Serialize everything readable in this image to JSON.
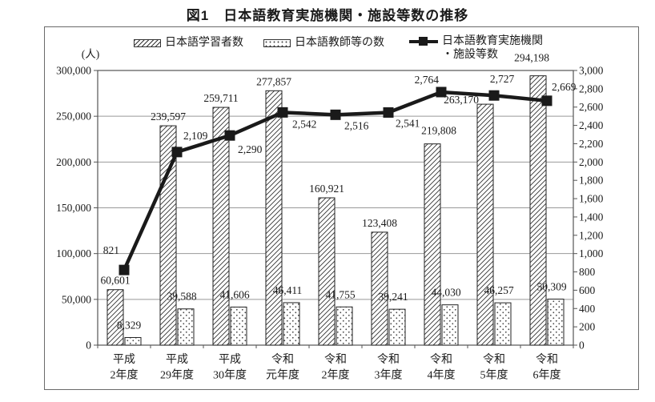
{
  "title": "図1　日本語教育実施機関・施設等数の推移",
  "legend": [
    {
      "label": "日本語学習者数",
      "swatch": "hatched-bar"
    },
    {
      "label": "日本語教師等の数",
      "swatch": "dotted-bar"
    },
    {
      "label": "日本語教育実施機関\n・施設等数",
      "swatch": "line-marker"
    }
  ],
  "colors": {
    "line": "#1a1a1a",
    "bar_outline": "#222222",
    "hatch": "#333333",
    "grid": "#999999",
    "frame": "#555555",
    "text": "#1a1a1a"
  },
  "chart_data": {
    "type": "bar-line-combo",
    "categories": [
      [
        "平成",
        "2年度"
      ],
      [
        "平成",
        "29年度"
      ],
      [
        "平成",
        "30年度"
      ],
      [
        "令和",
        "元年度"
      ],
      [
        "令和",
        "2年度"
      ],
      [
        "令和",
        "3年度"
      ],
      [
        "令和",
        "4年度"
      ],
      [
        "令和",
        "5年度"
      ],
      [
        "令和",
        "6年度"
      ]
    ],
    "series": [
      {
        "name": "日本語学習者数",
        "type": "bar",
        "pattern": "diagonal-hatch",
        "axis": "left",
        "values": [
          60601,
          239597,
          259711,
          277857,
          160921,
          123408,
          219808,
          263170,
          294198
        ]
      },
      {
        "name": "日本語教師等の数",
        "type": "bar",
        "pattern": "dots",
        "axis": "left",
        "values": [
          8329,
          39588,
          41606,
          46411,
          41755,
          39241,
          44030,
          46257,
          50309
        ]
      },
      {
        "name": "日本語教育実施機関・施設等数",
        "type": "line",
        "axis": "right",
        "values": [
          821,
          2109,
          2290,
          2542,
          2516,
          2541,
          2764,
          2727,
          2669
        ]
      }
    ],
    "left_axis": {
      "unit": "(人)",
      "min": 0,
      "max": 300000,
      "step": 50000
    },
    "right_axis": {
      "min": 0,
      "max": 3000,
      "step": 200
    },
    "grid": true,
    "legend_position": "top",
    "data_labels": true
  }
}
